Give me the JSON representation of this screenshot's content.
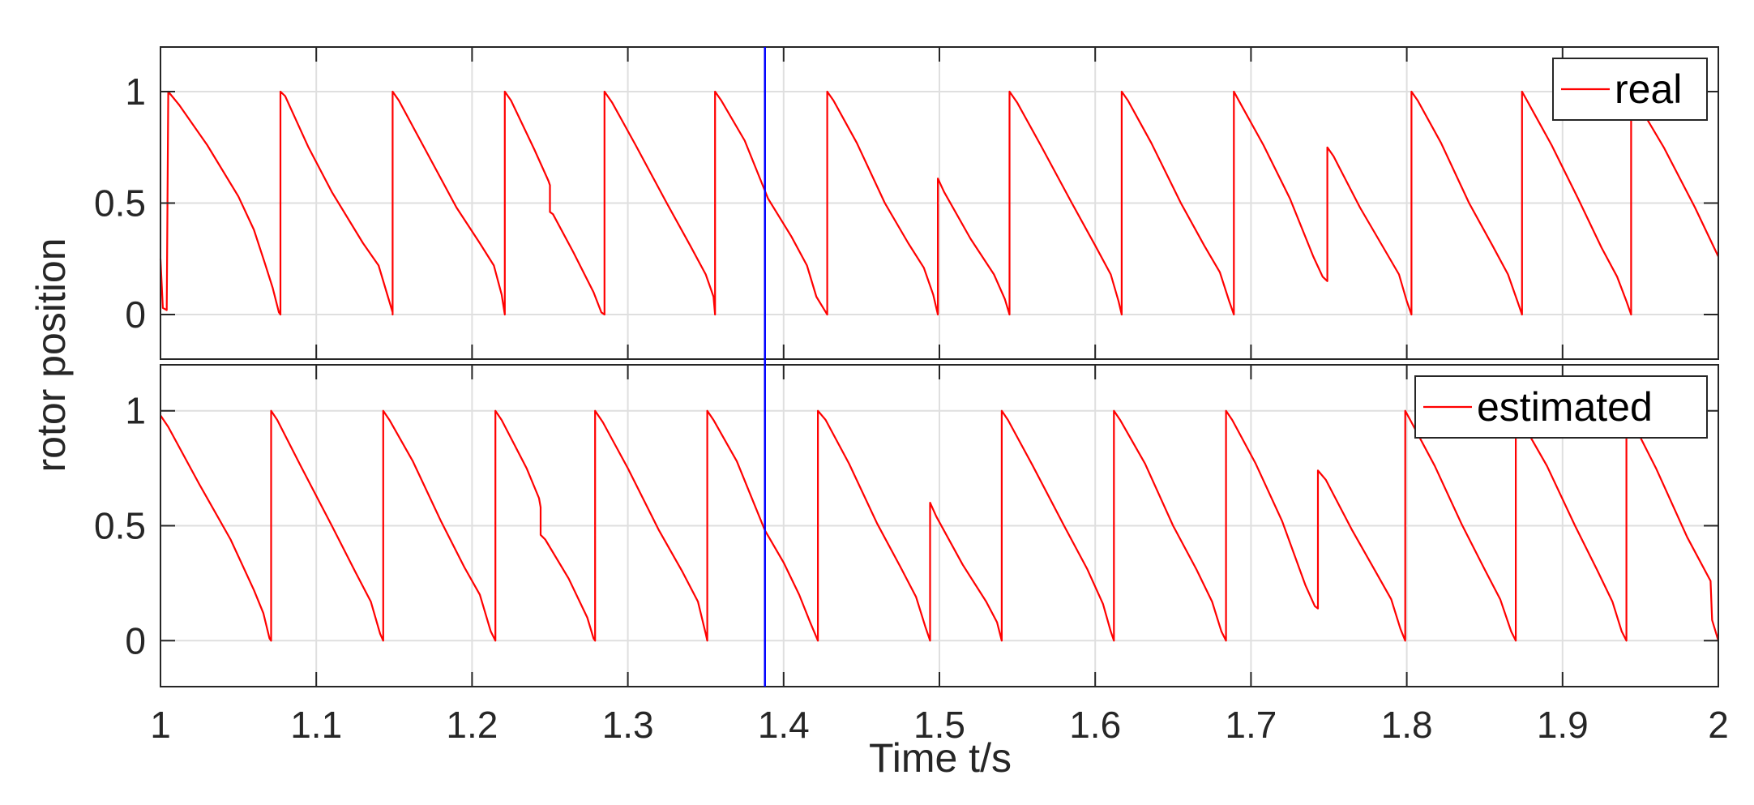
{
  "chart_data": {
    "type": "line",
    "xlabel": "Time t/s",
    "ylabel": "rotor position",
    "xlim": [
      1,
      2
    ],
    "ylim": [
      -0.2,
      1.2
    ],
    "x_ticks": [
      "1",
      "1.1",
      "1.2",
      "1.3",
      "1.4",
      "1.5",
      "1.6",
      "1.7",
      "1.8",
      "1.9",
      "2"
    ],
    "y_ticks": [
      "0",
      "0.5",
      "1"
    ],
    "grid": true,
    "cursor_x": 1.388,
    "colors": {
      "series": "#ff0000",
      "cursor": "#0000ff",
      "grid": "#dfdfdf",
      "axes": "#262626"
    },
    "panels": [
      {
        "name": "real",
        "legend_position": "top-right",
        "points": [
          [
            1.0,
            0.25
          ],
          [
            1.0015,
            0.03
          ],
          [
            1.004,
            0.02
          ],
          [
            1.005,
            1.0
          ],
          [
            1.012,
            0.94
          ],
          [
            1.03,
            0.76
          ],
          [
            1.05,
            0.53
          ],
          [
            1.06,
            0.38
          ],
          [
            1.067,
            0.23
          ],
          [
            1.072,
            0.12
          ],
          [
            1.076,
            0.01
          ],
          [
            1.077,
            0.0
          ],
          [
            1.077,
            1.0
          ],
          [
            1.08,
            0.98
          ],
          [
            1.095,
            0.75
          ],
          [
            1.11,
            0.55
          ],
          [
            1.13,
            0.32
          ],
          [
            1.14,
            0.22
          ],
          [
            1.146,
            0.08
          ],
          [
            1.149,
            0.01
          ],
          [
            1.149,
            0.0
          ],
          [
            1.149,
            1.0
          ],
          [
            1.153,
            0.96
          ],
          [
            1.17,
            0.74
          ],
          [
            1.19,
            0.48
          ],
          [
            1.205,
            0.32
          ],
          [
            1.214,
            0.22
          ],
          [
            1.219,
            0.09
          ],
          [
            1.221,
            0.0
          ],
          [
            1.221,
            1.0
          ],
          [
            1.225,
            0.96
          ],
          [
            1.24,
            0.74
          ],
          [
            1.249,
            0.6
          ],
          [
            1.25,
            0.58
          ],
          [
            1.25,
            0.46
          ],
          [
            1.252,
            0.45
          ],
          [
            1.265,
            0.28
          ],
          [
            1.278,
            0.1
          ],
          [
            1.283,
            0.01
          ],
          [
            1.285,
            0.0
          ],
          [
            1.285,
            1.0
          ],
          [
            1.29,
            0.95
          ],
          [
            1.305,
            0.76
          ],
          [
            1.325,
            0.5
          ],
          [
            1.34,
            0.31
          ],
          [
            1.35,
            0.18
          ],
          [
            1.355,
            0.08
          ],
          [
            1.356,
            0.0
          ],
          [
            1.356,
            1.0
          ],
          [
            1.36,
            0.96
          ],
          [
            1.375,
            0.78
          ],
          [
            1.39,
            0.52
          ],
          [
            1.405,
            0.35
          ],
          [
            1.415,
            0.22
          ],
          [
            1.421,
            0.08
          ],
          [
            1.428,
            0.0
          ],
          [
            1.428,
            1.0
          ],
          [
            1.432,
            0.96
          ],
          [
            1.447,
            0.77
          ],
          [
            1.465,
            0.5
          ],
          [
            1.48,
            0.32
          ],
          [
            1.49,
            0.21
          ],
          [
            1.496,
            0.09
          ],
          [
            1.499,
            0.0
          ],
          [
            1.499,
            0.61
          ],
          [
            1.503,
            0.55
          ],
          [
            1.52,
            0.34
          ],
          [
            1.535,
            0.18
          ],
          [
            1.542,
            0.07
          ],
          [
            1.545,
            0.0
          ],
          [
            1.545,
            1.0
          ],
          [
            1.55,
            0.95
          ],
          [
            1.565,
            0.76
          ],
          [
            1.585,
            0.5
          ],
          [
            1.6,
            0.31
          ],
          [
            1.61,
            0.18
          ],
          [
            1.615,
            0.06
          ],
          [
            1.617,
            0.0
          ],
          [
            1.617,
            1.0
          ],
          [
            1.621,
            0.96
          ],
          [
            1.636,
            0.77
          ],
          [
            1.655,
            0.5
          ],
          [
            1.67,
            0.31
          ],
          [
            1.68,
            0.19
          ],
          [
            1.686,
            0.06
          ],
          [
            1.689,
            0.0
          ],
          [
            1.689,
            1.0
          ],
          [
            1.693,
            0.95
          ],
          [
            1.708,
            0.76
          ],
          [
            1.725,
            0.52
          ],
          [
            1.74,
            0.26
          ],
          [
            1.746,
            0.17
          ],
          [
            1.749,
            0.15
          ],
          [
            1.749,
            0.75
          ],
          [
            1.753,
            0.71
          ],
          [
            1.77,
            0.48
          ],
          [
            1.785,
            0.3
          ],
          [
            1.795,
            0.18
          ],
          [
            1.8,
            0.06
          ],
          [
            1.803,
            0.0
          ],
          [
            1.803,
            1.0
          ],
          [
            1.807,
            0.96
          ],
          [
            1.822,
            0.77
          ],
          [
            1.84,
            0.5
          ],
          [
            1.855,
            0.31
          ],
          [
            1.865,
            0.18
          ],
          [
            1.871,
            0.06
          ],
          [
            1.874,
            0.0
          ],
          [
            1.874,
            1.0
          ],
          [
            1.878,
            0.95
          ],
          [
            1.893,
            0.76
          ],
          [
            1.91,
            0.52
          ],
          [
            1.925,
            0.3
          ],
          [
            1.935,
            0.17
          ],
          [
            1.941,
            0.06
          ],
          [
            1.944,
            0.0
          ],
          [
            1.944,
            1.0
          ],
          [
            1.948,
            0.95
          ],
          [
            1.965,
            0.75
          ],
          [
            1.985,
            0.48
          ],
          [
            2.0,
            0.26
          ]
        ]
      },
      {
        "name": "estimated",
        "legend_position": "top-right",
        "points": [
          [
            1.0,
            0.98
          ],
          [
            1.005,
            0.93
          ],
          [
            1.025,
            0.68
          ],
          [
            1.045,
            0.44
          ],
          [
            1.06,
            0.22
          ],
          [
            1.066,
            0.12
          ],
          [
            1.07,
            0.01
          ],
          [
            1.071,
            0.0
          ],
          [
            1.071,
            1.0
          ],
          [
            1.075,
            0.96
          ],
          [
            1.09,
            0.76
          ],
          [
            1.11,
            0.5
          ],
          [
            1.125,
            0.3
          ],
          [
            1.135,
            0.17
          ],
          [
            1.141,
            0.03
          ],
          [
            1.143,
            0.0
          ],
          [
            1.143,
            1.0
          ],
          [
            1.147,
            0.96
          ],
          [
            1.162,
            0.78
          ],
          [
            1.18,
            0.52
          ],
          [
            1.195,
            0.32
          ],
          [
            1.205,
            0.2
          ],
          [
            1.212,
            0.04
          ],
          [
            1.215,
            0.0
          ],
          [
            1.215,
            1.0
          ],
          [
            1.219,
            0.96
          ],
          [
            1.235,
            0.75
          ],
          [
            1.243,
            0.62
          ],
          [
            1.244,
            0.58
          ],
          [
            1.244,
            0.46
          ],
          [
            1.247,
            0.44
          ],
          [
            1.262,
            0.27
          ],
          [
            1.274,
            0.1
          ],
          [
            1.278,
            0.01
          ],
          [
            1.279,
            0.0
          ],
          [
            1.279,
            1.0
          ],
          [
            1.284,
            0.95
          ],
          [
            1.3,
            0.75
          ],
          [
            1.32,
            0.48
          ],
          [
            1.335,
            0.3
          ],
          [
            1.345,
            0.17
          ],
          [
            1.35,
            0.03
          ],
          [
            1.351,
            0.0
          ],
          [
            1.351,
            1.0
          ],
          [
            1.355,
            0.96
          ],
          [
            1.37,
            0.78
          ],
          [
            1.388,
            0.48
          ],
          [
            1.4,
            0.34
          ],
          [
            1.41,
            0.2
          ],
          [
            1.417,
            0.08
          ],
          [
            1.422,
            0.0
          ],
          [
            1.422,
            1.0
          ],
          [
            1.427,
            0.96
          ],
          [
            1.442,
            0.77
          ],
          [
            1.46,
            0.51
          ],
          [
            1.475,
            0.32
          ],
          [
            1.485,
            0.19
          ],
          [
            1.491,
            0.06
          ],
          [
            1.494,
            0.0
          ],
          [
            1.494,
            0.6
          ],
          [
            1.498,
            0.54
          ],
          [
            1.515,
            0.33
          ],
          [
            1.53,
            0.17
          ],
          [
            1.537,
            0.08
          ],
          [
            1.54,
            0.0
          ],
          [
            1.54,
            1.0
          ],
          [
            1.544,
            0.96
          ],
          [
            1.56,
            0.76
          ],
          [
            1.58,
            0.5
          ],
          [
            1.595,
            0.31
          ],
          [
            1.605,
            0.16
          ],
          [
            1.61,
            0.04
          ],
          [
            1.612,
            0.0
          ],
          [
            1.612,
            1.0
          ],
          [
            1.616,
            0.96
          ],
          [
            1.632,
            0.77
          ],
          [
            1.65,
            0.5
          ],
          [
            1.665,
            0.31
          ],
          [
            1.675,
            0.17
          ],
          [
            1.681,
            0.04
          ],
          [
            1.684,
            0.0
          ],
          [
            1.684,
            1.0
          ],
          [
            1.688,
            0.96
          ],
          [
            1.703,
            0.77
          ],
          [
            1.72,
            0.52
          ],
          [
            1.735,
            0.24
          ],
          [
            1.741,
            0.15
          ],
          [
            1.743,
            0.14
          ],
          [
            1.743,
            0.74
          ],
          [
            1.748,
            0.7
          ],
          [
            1.765,
            0.48
          ],
          [
            1.78,
            0.3
          ],
          [
            1.79,
            0.18
          ],
          [
            1.796,
            0.05
          ],
          [
            1.799,
            0.0
          ],
          [
            1.799,
            1.0
          ],
          [
            1.803,
            0.95
          ],
          [
            1.818,
            0.76
          ],
          [
            1.835,
            0.51
          ],
          [
            1.85,
            0.31
          ],
          [
            1.86,
            0.18
          ],
          [
            1.867,
            0.04
          ],
          [
            1.87,
            0.0
          ],
          [
            1.87,
            1.0
          ],
          [
            1.874,
            0.95
          ],
          [
            1.89,
            0.76
          ],
          [
            1.908,
            0.5
          ],
          [
            1.922,
            0.31
          ],
          [
            1.932,
            0.17
          ],
          [
            1.938,
            0.04
          ],
          [
            1.941,
            0.0
          ],
          [
            1.941,
            1.0
          ],
          [
            1.945,
            0.95
          ],
          [
            1.96,
            0.75
          ],
          [
            1.98,
            0.45
          ],
          [
            1.995,
            0.26
          ],
          [
            1.996,
            0.09
          ],
          [
            2.0,
            0.0
          ]
        ]
      }
    ]
  }
}
